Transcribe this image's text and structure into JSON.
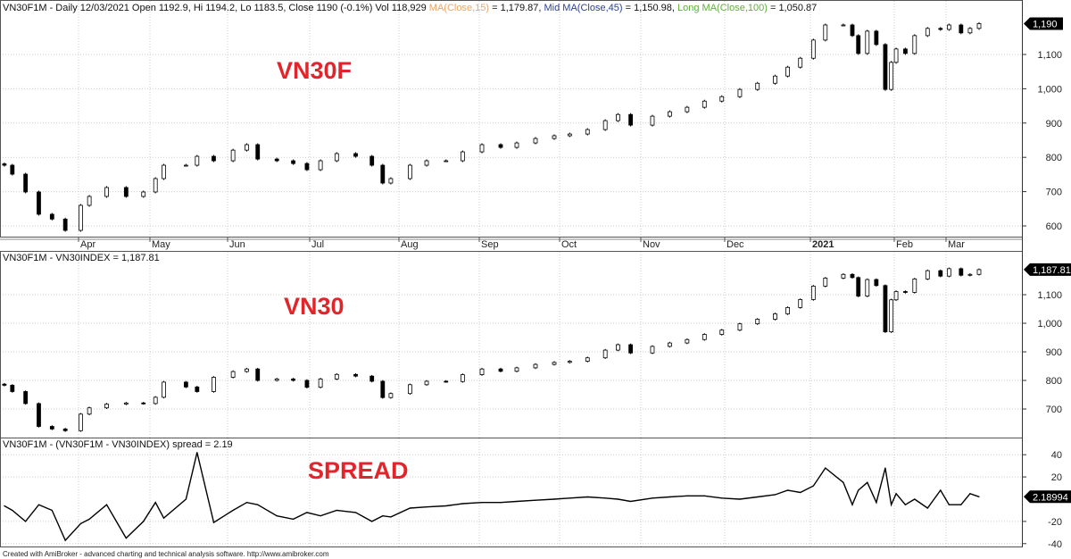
{
  "header": {
    "main": "VN30F1M - Daily 12/03/2021 Open 1192.9, Hi 1194.2, Lo 1183.5, Close 1190 (-0.1%) Vol 118,929",
    "ma15_label": "MA(Close,15)",
    "ma15_value": " = 1,179.87, ",
    "ma45_label": "Mid MA(Close,45)",
    "ma45_value": " = 1,150.98, ",
    "ma100_label": "Long MA(Close,100)",
    "ma100_value": " = 1,050.87"
  },
  "colors": {
    "ma15": "#e8a66a",
    "ma45": "#2a3f9a",
    "ma100": "#5fae3c",
    "annotation": "#e0262b",
    "up": "#ffffff",
    "down": "#000000"
  },
  "panel2_title": "VN30F1M - VN30INDEX = 1,187.81",
  "panel3_title": "VN30F1M - (VN30F1M - VN30INDEX) spread = 2.19",
  "annotations": {
    "vn30f": "VN30F",
    "vn30": "VN30",
    "spread": "SPREAD"
  },
  "footer": "Created with AmiBroker - advanced charting and technical analysis software. http://www.amibroker.com",
  "chart_data": [
    {
      "type": "candlestick",
      "series_name": "VN30F1M",
      "last_value_label": "1,190",
      "yticks": [
        "1,100",
        "1,000",
        "900",
        "800",
        "700",
        "600"
      ],
      "ytick_values": [
        1100,
        1000,
        900,
        800,
        700,
        600
      ],
      "ylim": [
        560,
        1220
      ],
      "xticks": [
        {
          "label": "Apr",
          "date": "2020-04-01",
          "bold": false
        },
        {
          "label": "May",
          "date": "2020-05-04",
          "bold": false
        },
        {
          "label": "Jun",
          "date": "2020-06-01",
          "bold": false
        },
        {
          "label": "Jul",
          "date": "2020-07-01",
          "bold": false
        },
        {
          "label": "Aug",
          "date": "2020-08-03",
          "bold": false
        },
        {
          "label": "Sep",
          "date": "2020-09-01",
          "bold": false
        },
        {
          "label": "Oct",
          "date": "2020-10-01",
          "bold": false
        },
        {
          "label": "Nov",
          "date": "2020-11-02",
          "bold": false
        },
        {
          "label": "Dec",
          "date": "2020-12-01",
          "bold": false
        },
        {
          "label": "2021",
          "date": "2021-01-04",
          "bold": true
        },
        {
          "label": "Feb",
          "date": "2021-02-01",
          "bold": false
        },
        {
          "label": "Mar",
          "date": "2021-03-01",
          "bold": false
        }
      ],
      "grid": true,
      "dates": [
        "2020-03-04",
        "2020-03-07",
        "2020-03-12",
        "2020-03-17",
        "2020-03-22",
        "2020-03-27",
        "2020-04-02",
        "2020-04-06",
        "2020-04-14",
        "2020-04-23",
        "2020-05-01",
        "2020-05-06",
        "2020-05-09",
        "2020-05-17",
        "2020-05-21",
        "2020-05-27",
        "2020-06-03",
        "2020-06-08",
        "2020-06-12",
        "2020-06-19",
        "2020-06-25",
        "2020-06-30",
        "2020-07-05",
        "2020-07-11",
        "2020-07-18",
        "2020-07-24",
        "2020-07-28",
        "2020-07-31",
        "2020-08-07",
        "2020-08-13",
        "2020-08-20",
        "2020-08-26",
        "2020-09-02",
        "2020-09-09",
        "2020-09-15",
        "2020-09-22",
        "2020-09-29",
        "2020-10-05",
        "2020-10-12",
        "2020-10-19",
        "2020-10-24",
        "2020-10-29",
        "2020-11-06",
        "2020-11-12",
        "2020-11-18",
        "2020-11-24",
        "2020-11-30",
        "2020-12-07",
        "2020-12-14",
        "2020-12-21",
        "2020-12-26",
        "2020-12-31",
        "2021-01-05",
        "2021-01-09",
        "2021-01-15",
        "2021-01-18",
        "2021-01-20",
        "2021-01-23",
        "2021-01-26",
        "2021-01-29",
        "2021-01-31",
        "2021-02-02",
        "2021-02-07",
        "2021-02-12",
        "2021-02-19",
        "2021-02-26",
        "2021-03-02",
        "2021-03-06",
        "2021-03-09",
        "2021-03-12"
      ],
      "close": [
        777,
        751,
        699,
        634,
        620,
        587,
        660,
        686,
        712,
        686,
        699,
        738,
        777,
        777,
        803,
        790,
        821,
        837,
        795,
        790,
        782,
        764,
        790,
        811,
        803,
        777,
        725,
        738,
        777,
        790,
        790,
        816,
        837,
        829,
        842,
        855,
        863,
        868,
        881,
        907,
        925,
        894,
        920,
        933,
        946,
        964,
        977,
        998,
        1016,
        1037,
        1063,
        1089,
        1142,
        1186,
        1186,
        1155,
        1103,
        1168,
        1129,
        998,
        1077,
        1116,
        1103,
        1155,
        1176,
        1173,
        1186,
        1163,
        1176,
        1190
      ]
    },
    {
      "type": "candlestick",
      "series_name": "VN30INDEX",
      "last_value_label": "1,187.81",
      "yticks": [
        "1,100",
        "1,000",
        "900",
        "800",
        "700"
      ],
      "ytick_values": [
        1100,
        1000,
        900,
        800,
        700
      ],
      "ylim": [
        600,
        1220
      ],
      "grid": true,
      "close": [
        783,
        761,
        719,
        639,
        630,
        624,
        682,
        704,
        717,
        721,
        719,
        741,
        794,
        777,
        761,
        811,
        831,
        840,
        800,
        805,
        800,
        776,
        805,
        821,
        815,
        797,
        740,
        754,
        785,
        797,
        796,
        820,
        840,
        832,
        844,
        856,
        863,
        867,
        879,
        906,
        925,
        896,
        919,
        931,
        943,
        961,
        976,
        998,
        1014,
        1033,
        1055,
        1083,
        1130,
        1158,
        1171,
        1160,
        1095,
        1153,
        1132,
        970,
        1082,
        1111,
        1108,
        1155,
        1184,
        1165,
        1191,
        1168,
        1171,
        1187.81
      ]
    },
    {
      "type": "line",
      "series_name": "spread",
      "last_value_label": "2.18994",
      "yticks": [
        "40",
        "20",
        "-20",
        "-40"
      ],
      "ytick_values": [
        40,
        20,
        -20,
        -40
      ],
      "ylim": [
        -42,
        50
      ],
      "grid": true,
      "values": [
        -6,
        -10,
        -20,
        -5,
        -10,
        -37,
        -22,
        -18,
        -5,
        -35,
        -20,
        -3,
        -17,
        0,
        42,
        -21,
        -10,
        -3,
        -5,
        -15,
        -18,
        -12,
        -15,
        -10,
        -12,
        -20,
        -15,
        -16,
        -8,
        -7,
        -6,
        -4,
        -3,
        -3,
        -2,
        -1,
        0,
        1,
        2,
        1,
        0,
        -2,
        1,
        2,
        3,
        3,
        1,
        0,
        2,
        4,
        8,
        6,
        12,
        28,
        15,
        -5,
        8,
        15,
        -3,
        28,
        -5,
        5,
        -5,
        0,
        -8,
        8,
        -5,
        -5,
        5,
        2.19
      ]
    }
  ]
}
